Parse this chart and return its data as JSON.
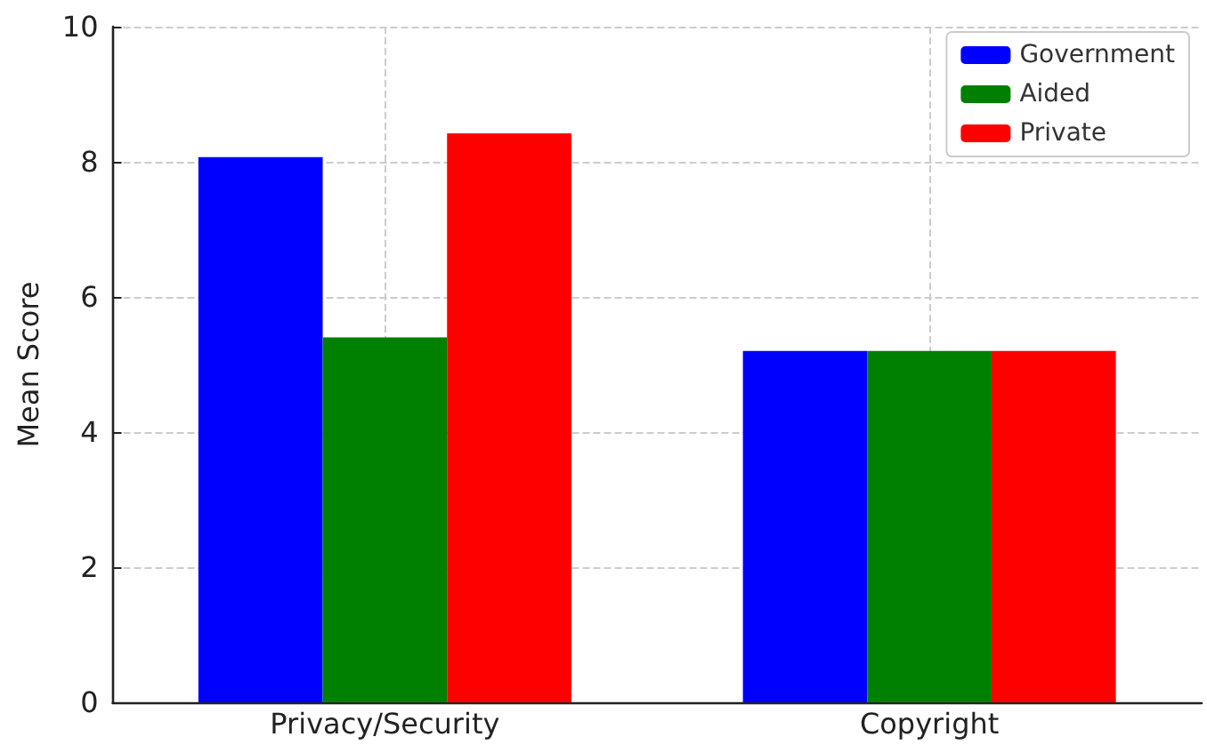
{
  "chart_data": {
    "type": "bar",
    "ylabel": "Mean Score",
    "categories": [
      "Privacy/Security",
      "Copyright"
    ],
    "series": [
      {
        "name": "Government",
        "color": "#0000ff",
        "values": [
          8.07,
          5.2
        ]
      },
      {
        "name": "Aided",
        "color": "#008000",
        "values": [
          5.4,
          5.2
        ]
      },
      {
        "name": "Private",
        "color": "#ff0000",
        "values": [
          8.42,
          5.2
        ]
      }
    ],
    "ylim": [
      0,
      10
    ],
    "yticks": [
      0,
      2,
      4,
      6,
      8,
      10
    ],
    "grid": true,
    "legend": "top right"
  }
}
